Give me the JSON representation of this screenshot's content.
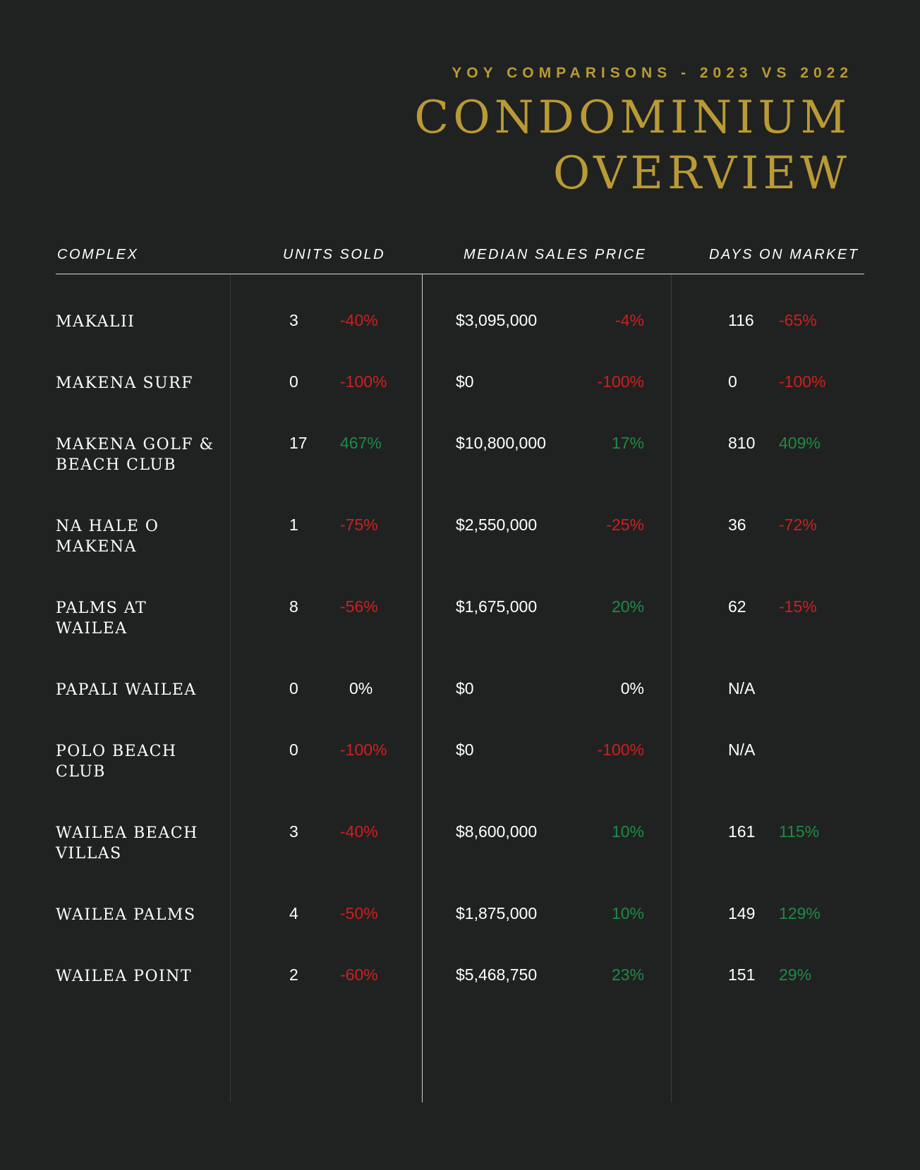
{
  "header": {
    "kicker": "YOY COMPARISONS - 2023 VS 2022",
    "title_line1": "CONDOMINIUM",
    "title_line2": "OVERVIEW"
  },
  "columns": {
    "complex": "COMPLEX",
    "units_sold": "UNITS SOLD",
    "median_sales_price": "MEDIAN SALES PRICE",
    "days_on_market": "DAYS ON MARKET"
  },
  "colors": {
    "background": "#202221",
    "gold": "#b99a35",
    "negative": "#cf1f1f",
    "positive": "#1f8a46"
  },
  "rows": [
    {
      "complex": "MAKALII",
      "units": "3",
      "units_pct": "-40%",
      "units_dir": "neg",
      "price": "$3,095,000",
      "price_pct": "-4%",
      "price_dir": "neg",
      "days": "116",
      "days_pct": "-65%",
      "days_dir": "neg"
    },
    {
      "complex": "MAKENA SURF",
      "units": "0",
      "units_pct": "-100%",
      "units_dir": "neg",
      "price": "$0",
      "price_pct": "-100%",
      "price_dir": "neg",
      "days": "0",
      "days_pct": "-100%",
      "days_dir": "neg"
    },
    {
      "complex": "MAKENA GOLF & BEACH CLUB",
      "units": "17",
      "units_pct": "467%",
      "units_dir": "pos",
      "price": "$10,800,000",
      "price_pct": "17%",
      "price_dir": "pos",
      "days": "810",
      "days_pct": "409%",
      "days_dir": "pos"
    },
    {
      "complex": "NA HALE O MAKENA",
      "units": "1",
      "units_pct": "-75%",
      "units_dir": "neg",
      "price": "$2,550,000",
      "price_pct": "-25%",
      "price_dir": "neg",
      "days": "36",
      "days_pct": "-72%",
      "days_dir": "neg"
    },
    {
      "complex": "PALMS AT WAILEA",
      "units": "8",
      "units_pct": "-56%",
      "units_dir": "neg",
      "price": "$1,675,000",
      "price_pct": "20%",
      "price_dir": "pos",
      "days": "62",
      "days_pct": "-15%",
      "days_dir": "neg"
    },
    {
      "complex": "PAPALI WAILEA",
      "units": "0",
      "units_pct": "0%",
      "units_dir": "neutral",
      "price": "$0",
      "price_pct": "0%",
      "price_dir": "neutral",
      "days": "N/A",
      "days_pct": "",
      "days_dir": "neutral"
    },
    {
      "complex": "POLO BEACH CLUB",
      "units": "0",
      "units_pct": "-100%",
      "units_dir": "neg",
      "price": "$0",
      "price_pct": "-100%",
      "price_dir": "neg",
      "days": "N/A",
      "days_pct": "",
      "days_dir": "neutral"
    },
    {
      "complex": "WAILEA BEACH VILLAS",
      "units": "3",
      "units_pct": "-40%",
      "units_dir": "neg",
      "price": "$8,600,000",
      "price_pct": "10%",
      "price_dir": "pos",
      "days": "161",
      "days_pct": "115%",
      "days_dir": "pos"
    },
    {
      "complex": "WAILEA PALMS",
      "units": "4",
      "units_pct": "-50%",
      "units_dir": "neg",
      "price": "$1,875,000",
      "price_pct": "10%",
      "price_dir": "pos",
      "days": "149",
      "days_pct": "129%",
      "days_dir": "pos"
    },
    {
      "complex": "WAILEA POINT",
      "units": "2",
      "units_pct": "-60%",
      "units_dir": "neg",
      "price": "$5,468,750",
      "price_pct": "23%",
      "price_dir": "pos",
      "days": "151",
      "days_pct": "29%",
      "days_dir": "pos"
    }
  ]
}
